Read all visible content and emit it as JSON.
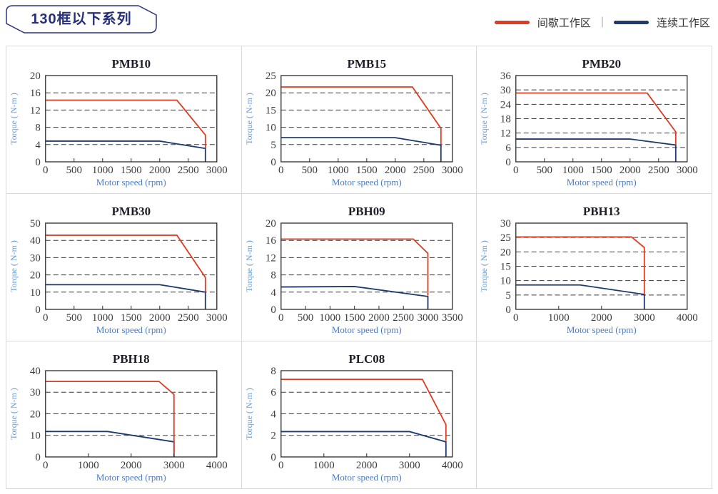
{
  "header": {
    "title": "130框以下系列",
    "legend_separator": "|",
    "legend": [
      {
        "name": "intermittent-zone",
        "label": "间歇工作区",
        "color": "#dd3b22"
      },
      {
        "name": "continuous-zone",
        "label": "连续工作区",
        "color": "#1e3a6e"
      }
    ]
  },
  "colors": {
    "intermittent": "#dd3b22",
    "continuous": "#1e3a6e",
    "grid_line": "#3c3c3c",
    "plot_border": "#2b2b2b",
    "title_box_border": "#2c357f",
    "x_label_blue": "#4a7cc5",
    "y_label_blue": "#649ad3",
    "cell_border": "#d9d9d9"
  },
  "chart_data": [
    {
      "type": "line",
      "title": "PMB10",
      "xlabel": "Motor speed (rpm)",
      "ylabel": "Torque ( N-m )",
      "xlim": [
        0,
        3000
      ],
      "ylim": [
        0,
        20
      ],
      "xticks": [
        0,
        500,
        1000,
        1500,
        2000,
        2500,
        3000
      ],
      "yticks": [
        0,
        4,
        8,
        12,
        16,
        20
      ],
      "series": [
        {
          "name": "间歇工作区",
          "color": "#dd3b22",
          "points": [
            [
              0,
              14.3
            ],
            [
              2300,
              14.3
            ],
            [
              2800,
              6.2
            ],
            [
              2800,
              3.2
            ]
          ]
        },
        {
          "name": "连续工作区",
          "color": "#1e3a6e",
          "points": [
            [
              0,
              4.8
            ],
            [
              2000,
              4.8
            ],
            [
              2800,
              3.1
            ],
            [
              2800,
              0
            ]
          ]
        }
      ]
    },
    {
      "type": "line",
      "title": "PMB15",
      "xlabel": "Motor speed (rpm)",
      "ylabel": "Torque ( N-m )",
      "xlim": [
        0,
        3000
      ],
      "ylim": [
        0,
        25
      ],
      "xticks": [
        0,
        500,
        1000,
        1500,
        2000,
        2500,
        3000
      ],
      "yticks": [
        0,
        5,
        10,
        15,
        20,
        25
      ],
      "series": [
        {
          "name": "间歇工作区",
          "color": "#dd3b22",
          "points": [
            [
              0,
              21.7
            ],
            [
              2300,
              21.7
            ],
            [
              2800,
              9.7
            ],
            [
              2800,
              5.0
            ]
          ]
        },
        {
          "name": "连续工作区",
          "color": "#1e3a6e",
          "points": [
            [
              0,
              7.0
            ],
            [
              2000,
              7.0
            ],
            [
              2800,
              4.8
            ],
            [
              2800,
              0
            ]
          ]
        }
      ]
    },
    {
      "type": "line",
      "title": "PMB20",
      "xlabel": "Motor speed (rpm)",
      "ylabel": "Torque ( N-m )",
      "xlim": [
        0,
        3000
      ],
      "ylim": [
        0,
        36
      ],
      "xticks": [
        0,
        500,
        1000,
        1500,
        2000,
        2500,
        3000
      ],
      "yticks": [
        0,
        6,
        12,
        18,
        24,
        30,
        36
      ],
      "series": [
        {
          "name": "间歇工作区",
          "color": "#dd3b22",
          "points": [
            [
              0,
              28.7
            ],
            [
              2300,
              28.7
            ],
            [
              2800,
              12.5
            ],
            [
              2800,
              7.2
            ]
          ]
        },
        {
          "name": "连续工作区",
          "color": "#1e3a6e",
          "points": [
            [
              0,
              9.5
            ],
            [
              2000,
              9.5
            ],
            [
              2800,
              7.0
            ],
            [
              2800,
              0
            ]
          ]
        }
      ]
    },
    {
      "type": "line",
      "title": "PMB30",
      "xlabel": "Motor speed (rpm)",
      "ylabel": "Torque ( N-m )",
      "xlim": [
        0,
        3000
      ],
      "ylim": [
        0,
        50
      ],
      "xticks": [
        0,
        500,
        1000,
        1500,
        2000,
        2500,
        3000
      ],
      "yticks": [
        0,
        10,
        20,
        30,
        40,
        50
      ],
      "series": [
        {
          "name": "间歇工作区",
          "color": "#dd3b22",
          "points": [
            [
              0,
              43
            ],
            [
              2300,
              43
            ],
            [
              2800,
              18.5
            ],
            [
              2800,
              10.3
            ]
          ]
        },
        {
          "name": "连续工作区",
          "color": "#1e3a6e",
          "points": [
            [
              0,
              14.3
            ],
            [
              2000,
              14.3
            ],
            [
              2800,
              10
            ],
            [
              2800,
              0
            ]
          ]
        }
      ]
    },
    {
      "type": "line",
      "title": "PBH09",
      "xlabel": "Motor speed (rpm)",
      "ylabel": "Torque ( N-m )",
      "xlim": [
        0,
        3500
      ],
      "ylim": [
        0,
        20
      ],
      "xticks": [
        0,
        500,
        1000,
        1500,
        2000,
        2500,
        3000,
        3500
      ],
      "yticks": [
        0,
        4,
        8,
        12,
        16,
        20
      ],
      "series": [
        {
          "name": "间歇工作区",
          "color": "#dd3b22",
          "points": [
            [
              0,
              16.3
            ],
            [
              2700,
              16.3
            ],
            [
              3000,
              13
            ],
            [
              3000,
              3.2
            ]
          ]
        },
        {
          "name": "连续工作区",
          "color": "#1e3a6e",
          "points": [
            [
              0,
              5.2
            ],
            [
              1500,
              5.3
            ],
            [
              3000,
              3.0
            ],
            [
              3000,
              0
            ]
          ]
        }
      ]
    },
    {
      "type": "line",
      "title": "PBH13",
      "xlabel": "Motor speed (rpm)",
      "ylabel": "Torque ( N-m )",
      "xlim": [
        0,
        4000
      ],
      "ylim": [
        0,
        30
      ],
      "xticks": [
        0,
        1000,
        2000,
        3000,
        4000
      ],
      "yticks": [
        0,
        5,
        10,
        15,
        20,
        25,
        30
      ],
      "series": [
        {
          "name": "间歇工作区",
          "color": "#dd3b22",
          "points": [
            [
              0,
              25.2
            ],
            [
              2700,
              25.2
            ],
            [
              3000,
              21.5
            ],
            [
              3000,
              5.3
            ]
          ]
        },
        {
          "name": "连续工作区",
          "color": "#1e3a6e",
          "points": [
            [
              0,
              8.5
            ],
            [
              1500,
              8.5
            ],
            [
              3000,
              5.2
            ],
            [
              3000,
              0
            ]
          ]
        }
      ]
    },
    {
      "type": "line",
      "title": "PBH18",
      "xlabel": "Motor speed (rpm)",
      "ylabel": "Torque ( N-m )",
      "xlim": [
        0,
        4000
      ],
      "ylim": [
        0,
        40
      ],
      "xticks": [
        0,
        1000,
        2000,
        3000,
        4000
      ],
      "yticks": [
        0,
        10,
        20,
        30,
        40
      ],
      "series": [
        {
          "name": "间歇工作区",
          "color": "#dd3b22",
          "points": [
            [
              0,
              35
            ],
            [
              2650,
              35
            ],
            [
              3000,
              29
            ],
            [
              3000,
              1.5
            ]
          ]
        },
        {
          "name": "连续工作区",
          "color": "#1e3a6e",
          "points": [
            [
              0,
              11.8
            ],
            [
              1450,
              11.8
            ],
            [
              3000,
              7
            ],
            [
              3000,
              0
            ]
          ]
        }
      ]
    },
    {
      "type": "line",
      "title": "PLC08",
      "xlabel": "Motor speed (rpm)",
      "ylabel": "Torque ( N-m )",
      "xlim": [
        0,
        4000
      ],
      "ylim": [
        0,
        8
      ],
      "xticks": [
        0,
        1000,
        2000,
        3000,
        4000
      ],
      "yticks": [
        0,
        2,
        4,
        6,
        8
      ],
      "series": [
        {
          "name": "间歇工作区",
          "color": "#dd3b22",
          "points": [
            [
              0,
              7.2
            ],
            [
              3300,
              7.2
            ],
            [
              3850,
              3.0
            ],
            [
              3850,
              1.5
            ]
          ]
        },
        {
          "name": "连续工作区",
          "color": "#1e3a6e",
          "points": [
            [
              0,
              2.35
            ],
            [
              3000,
              2.35
            ],
            [
              3850,
              1.4
            ],
            [
              3850,
              0
            ]
          ]
        }
      ]
    }
  ]
}
